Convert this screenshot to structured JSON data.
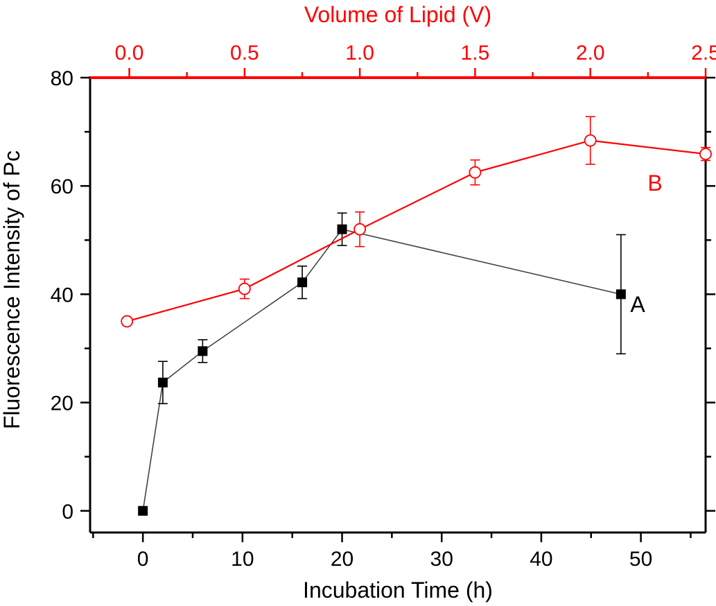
{
  "chart_data": {
    "type": "line",
    "xlabel": "Incubation Time (h)",
    "ylabel": "Fluorescence Intensity of Pc",
    "x2label": "Volume of Lipid (V)",
    "xlim": [
      -5.3,
      56.5
    ],
    "ylim": [
      -4,
      80
    ],
    "x2lim": [
      -0.17,
      2.5
    ],
    "xticks": [
      0,
      10,
      20,
      30,
      40,
      50
    ],
    "yticks": [
      0,
      20,
      40,
      60,
      80
    ],
    "x2ticks": [
      0.0,
      0.5,
      1.0,
      1.5,
      2.0,
      2.5
    ],
    "xtick_labels": [
      "0",
      "10",
      "20",
      "30",
      "40",
      "50"
    ],
    "ytick_labels": [
      "0",
      "20",
      "40",
      "60",
      "80"
    ],
    "x2tick_labels": [
      "0.0",
      "0.5",
      "1.0",
      "1.5",
      "2.0",
      "2.5"
    ],
    "colors": {
      "black": "#000000",
      "red": "#ff0000",
      "line_black": "#444444"
    },
    "series": [
      {
        "name": "A",
        "axis": "bottom",
        "marker": "filled-square",
        "color": "#000000",
        "x": [
          0,
          2,
          6,
          16,
          20,
          48
        ],
        "y": [
          0,
          23.7,
          29.5,
          42.2,
          52,
          40
        ],
        "err": [
          0,
          3.9,
          2.1,
          3.0,
          3.0,
          11.0
        ]
      },
      {
        "name": "B",
        "axis": "top",
        "marker": "open-circle",
        "color": "#ff0000",
        "x": [
          -0.01,
          0.5,
          1.0,
          1.5,
          2.0,
          2.5
        ],
        "y": [
          35,
          41,
          52,
          62.5,
          68.4,
          65.9
        ],
        "err": [
          0.6,
          1.8,
          3.2,
          2.3,
          4.4,
          1.2
        ]
      }
    ]
  }
}
